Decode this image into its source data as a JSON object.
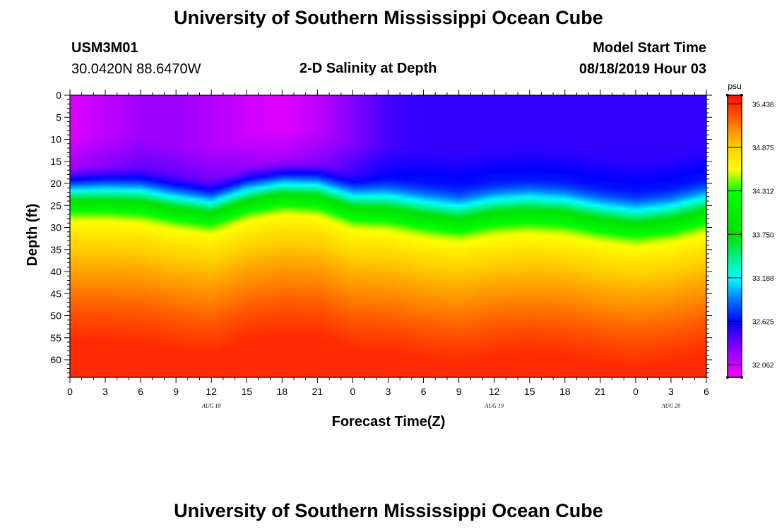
{
  "page": {
    "title_top": "University of Southern Mississippi Ocean Cube",
    "title_bottom": "University of Southern Mississippi Ocean Cube",
    "station_id": "USM3M01",
    "location": "30.0420N 88.6470W",
    "plot_title": "2-D Salinity at Depth",
    "model_start_label": "Model Start Time",
    "model_start_value": "08/18/2019 Hour 03"
  },
  "chart_data": {
    "type": "heatmap",
    "title": "2-D Salinity at Depth",
    "xlabel": "Forecast Time(Z)",
    "ylabel": "Depth (ft)",
    "x_hours": [
      0,
      3,
      6,
      9,
      12,
      15,
      18,
      21,
      24,
      27,
      30,
      33,
      36,
      39,
      42,
      45,
      48,
      51,
      54
    ],
    "xticks": [
      "0",
      "3",
      "6",
      "9",
      "12",
      "15",
      "18",
      "21",
      "0",
      "3",
      "6",
      "9",
      "12",
      "15",
      "18",
      "21",
      "0",
      "3",
      "6"
    ],
    "xlim": [
      0,
      54
    ],
    "date_labels": [
      {
        "text": "AUG 18",
        "hour": 12
      },
      {
        "text": "AUG 19",
        "hour": 36
      },
      {
        "text": "AUG 20",
        "hour": 51
      }
    ],
    "yticks": [
      "0",
      "5",
      "10",
      "15",
      "20",
      "25",
      "30",
      "35",
      "40",
      "45",
      "50",
      "55",
      "60"
    ],
    "ylim": [
      0,
      64
    ],
    "y_inverted": true,
    "halocline_depth_ft": [
      21,
      21,
      21.5,
      23,
      24,
      21,
      19.5,
      20,
      23,
      23.5,
      25,
      26,
      24.5,
      24,
      24.5,
      26,
      27,
      26,
      24
    ],
    "surface_salinity_psu": [
      32.0,
      32.1,
      32.2,
      32.2,
      32.15,
      32.05,
      32.0,
      32.1,
      32.3,
      32.45,
      32.5,
      32.5,
      32.5,
      32.5,
      32.5,
      32.5,
      32.5,
      32.5,
      32.5
    ],
    "bottom_salinity_psu": [
      35.45,
      35.45,
      35.45,
      35.45,
      35.45,
      35.45,
      35.45,
      35.45,
      35.45,
      35.45,
      35.45,
      35.45,
      35.45,
      35.45,
      35.45,
      35.45,
      35.45,
      35.45,
      35.45
    ],
    "colorbar": {
      "unit": "psu",
      "min": 31.9,
      "max": 35.55,
      "labels": [
        "35.438",
        "34.875",
        "34.312",
        "33.750",
        "33.188",
        "32.625",
        "32.062"
      ],
      "label_values": [
        35.438,
        34.875,
        34.312,
        33.75,
        33.188,
        32.625,
        32.062
      ]
    },
    "colormap_stops": [
      {
        "v": 31.9,
        "color": "#ff00ff"
      },
      {
        "v": 32.3,
        "color": "#8000ff"
      },
      {
        "v": 32.62,
        "color": "#0000ff"
      },
      {
        "v": 32.95,
        "color": "#0088ff"
      },
      {
        "v": 33.188,
        "color": "#00ffff"
      },
      {
        "v": 33.75,
        "color": "#00e000"
      },
      {
        "v": 34.312,
        "color": "#00ff00"
      },
      {
        "v": 34.6,
        "color": "#ffff00"
      },
      {
        "v": 34.875,
        "color": "#ffd000"
      },
      {
        "v": 35.1,
        "color": "#ff9000"
      },
      {
        "v": 35.3,
        "color": "#ff5000"
      },
      {
        "v": 35.55,
        "color": "#ff1000"
      }
    ]
  }
}
